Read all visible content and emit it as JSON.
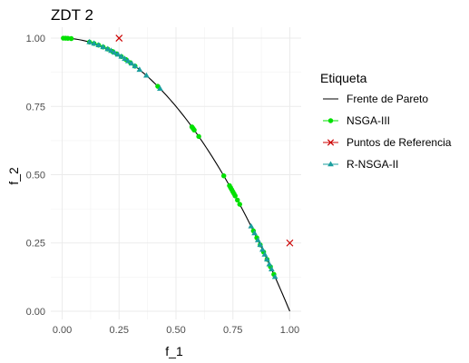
{
  "chart_data": {
    "type": "scatter",
    "title": "ZDT 2",
    "xlabel": "f_1",
    "ylabel": "f_2",
    "xlim": [
      -0.05,
      1.05
    ],
    "ylim": [
      -0.03,
      1.04
    ],
    "x_ticks": [
      0.0,
      0.25,
      0.5,
      0.75,
      1.0
    ],
    "y_ticks": [
      0.0,
      0.25,
      0.5,
      0.75,
      1.0
    ],
    "x_tick_labels": [
      "0.00",
      "0.25",
      "0.50",
      "0.75",
      "1.00"
    ],
    "y_tick_labels": [
      "0.00",
      "0.25",
      "0.50",
      "0.75",
      "1.00"
    ],
    "grid": true,
    "legend": {
      "title": "Etiqueta",
      "position": "right",
      "entries": [
        "Frente de Pareto",
        "NSGA-III",
        "Puntos de Referencia",
        "R-NSGA-II"
      ]
    },
    "series": [
      {
        "name": "Frente de Pareto",
        "kind": "line",
        "color": "#000000",
        "function": "y = 1 - x^2",
        "x_range": [
          0,
          1
        ]
      },
      {
        "name": "NSGA-III",
        "kind": "points",
        "color": "#00e000",
        "marker": "circle",
        "x": [
          0.005,
          0.015,
          0.025,
          0.04,
          0.12,
          0.14,
          0.16,
          0.18,
          0.2,
          0.22,
          0.24,
          0.26,
          0.28,
          0.3,
          0.32,
          0.42,
          0.57,
          0.575,
          0.58,
          0.6,
          0.71,
          0.735,
          0.74,
          0.745,
          0.75,
          0.755,
          0.76,
          0.77,
          0.78,
          0.84,
          0.855,
          0.87,
          0.885,
          0.9,
          0.915,
          0.93
        ],
        "y": [
          0.99998,
          0.9998,
          0.9994,
          0.9984,
          0.9856,
          0.9804,
          0.9744,
          0.9676,
          0.96,
          0.9516,
          0.9424,
          0.9324,
          0.9216,
          0.91,
          0.8976,
          0.8236,
          0.6751,
          0.6694,
          0.6636,
          0.64,
          0.4959,
          0.4598,
          0.4524,
          0.445,
          0.4375,
          0.43,
          0.4224,
          0.4071,
          0.3916,
          0.2944,
          0.269,
          0.2431,
          0.2168,
          0.19,
          0.1628,
          0.1351
        ]
      },
      {
        "name": "Puntos de Referencia",
        "kind": "points",
        "color": "#cc0000",
        "marker": "cross",
        "x": [
          0.25,
          1.0
        ],
        "y": [
          1.0,
          0.25
        ]
      },
      {
        "name": "R-NSGA-II",
        "kind": "points",
        "color": "#1a9e9e",
        "marker": "triangle",
        "x": [
          0.12,
          0.14,
          0.16,
          0.18,
          0.2,
          0.215,
          0.23,
          0.245,
          0.26,
          0.275,
          0.29,
          0.305,
          0.32,
          0.34,
          0.37,
          0.43,
          0.83,
          0.845,
          0.86,
          0.87,
          0.88,
          0.89,
          0.9,
          0.91,
          0.92,
          0.935
        ],
        "y": [
          0.9856,
          0.9804,
          0.9744,
          0.9676,
          0.96,
          0.9538,
          0.9471,
          0.94,
          0.9324,
          0.9244,
          0.9159,
          0.907,
          0.8976,
          0.8844,
          0.8631,
          0.8151,
          0.3111,
          0.286,
          0.2604,
          0.2431,
          0.2256,
          0.2079,
          0.19,
          0.1719,
          0.1536,
          0.1258
        ]
      }
    ]
  }
}
